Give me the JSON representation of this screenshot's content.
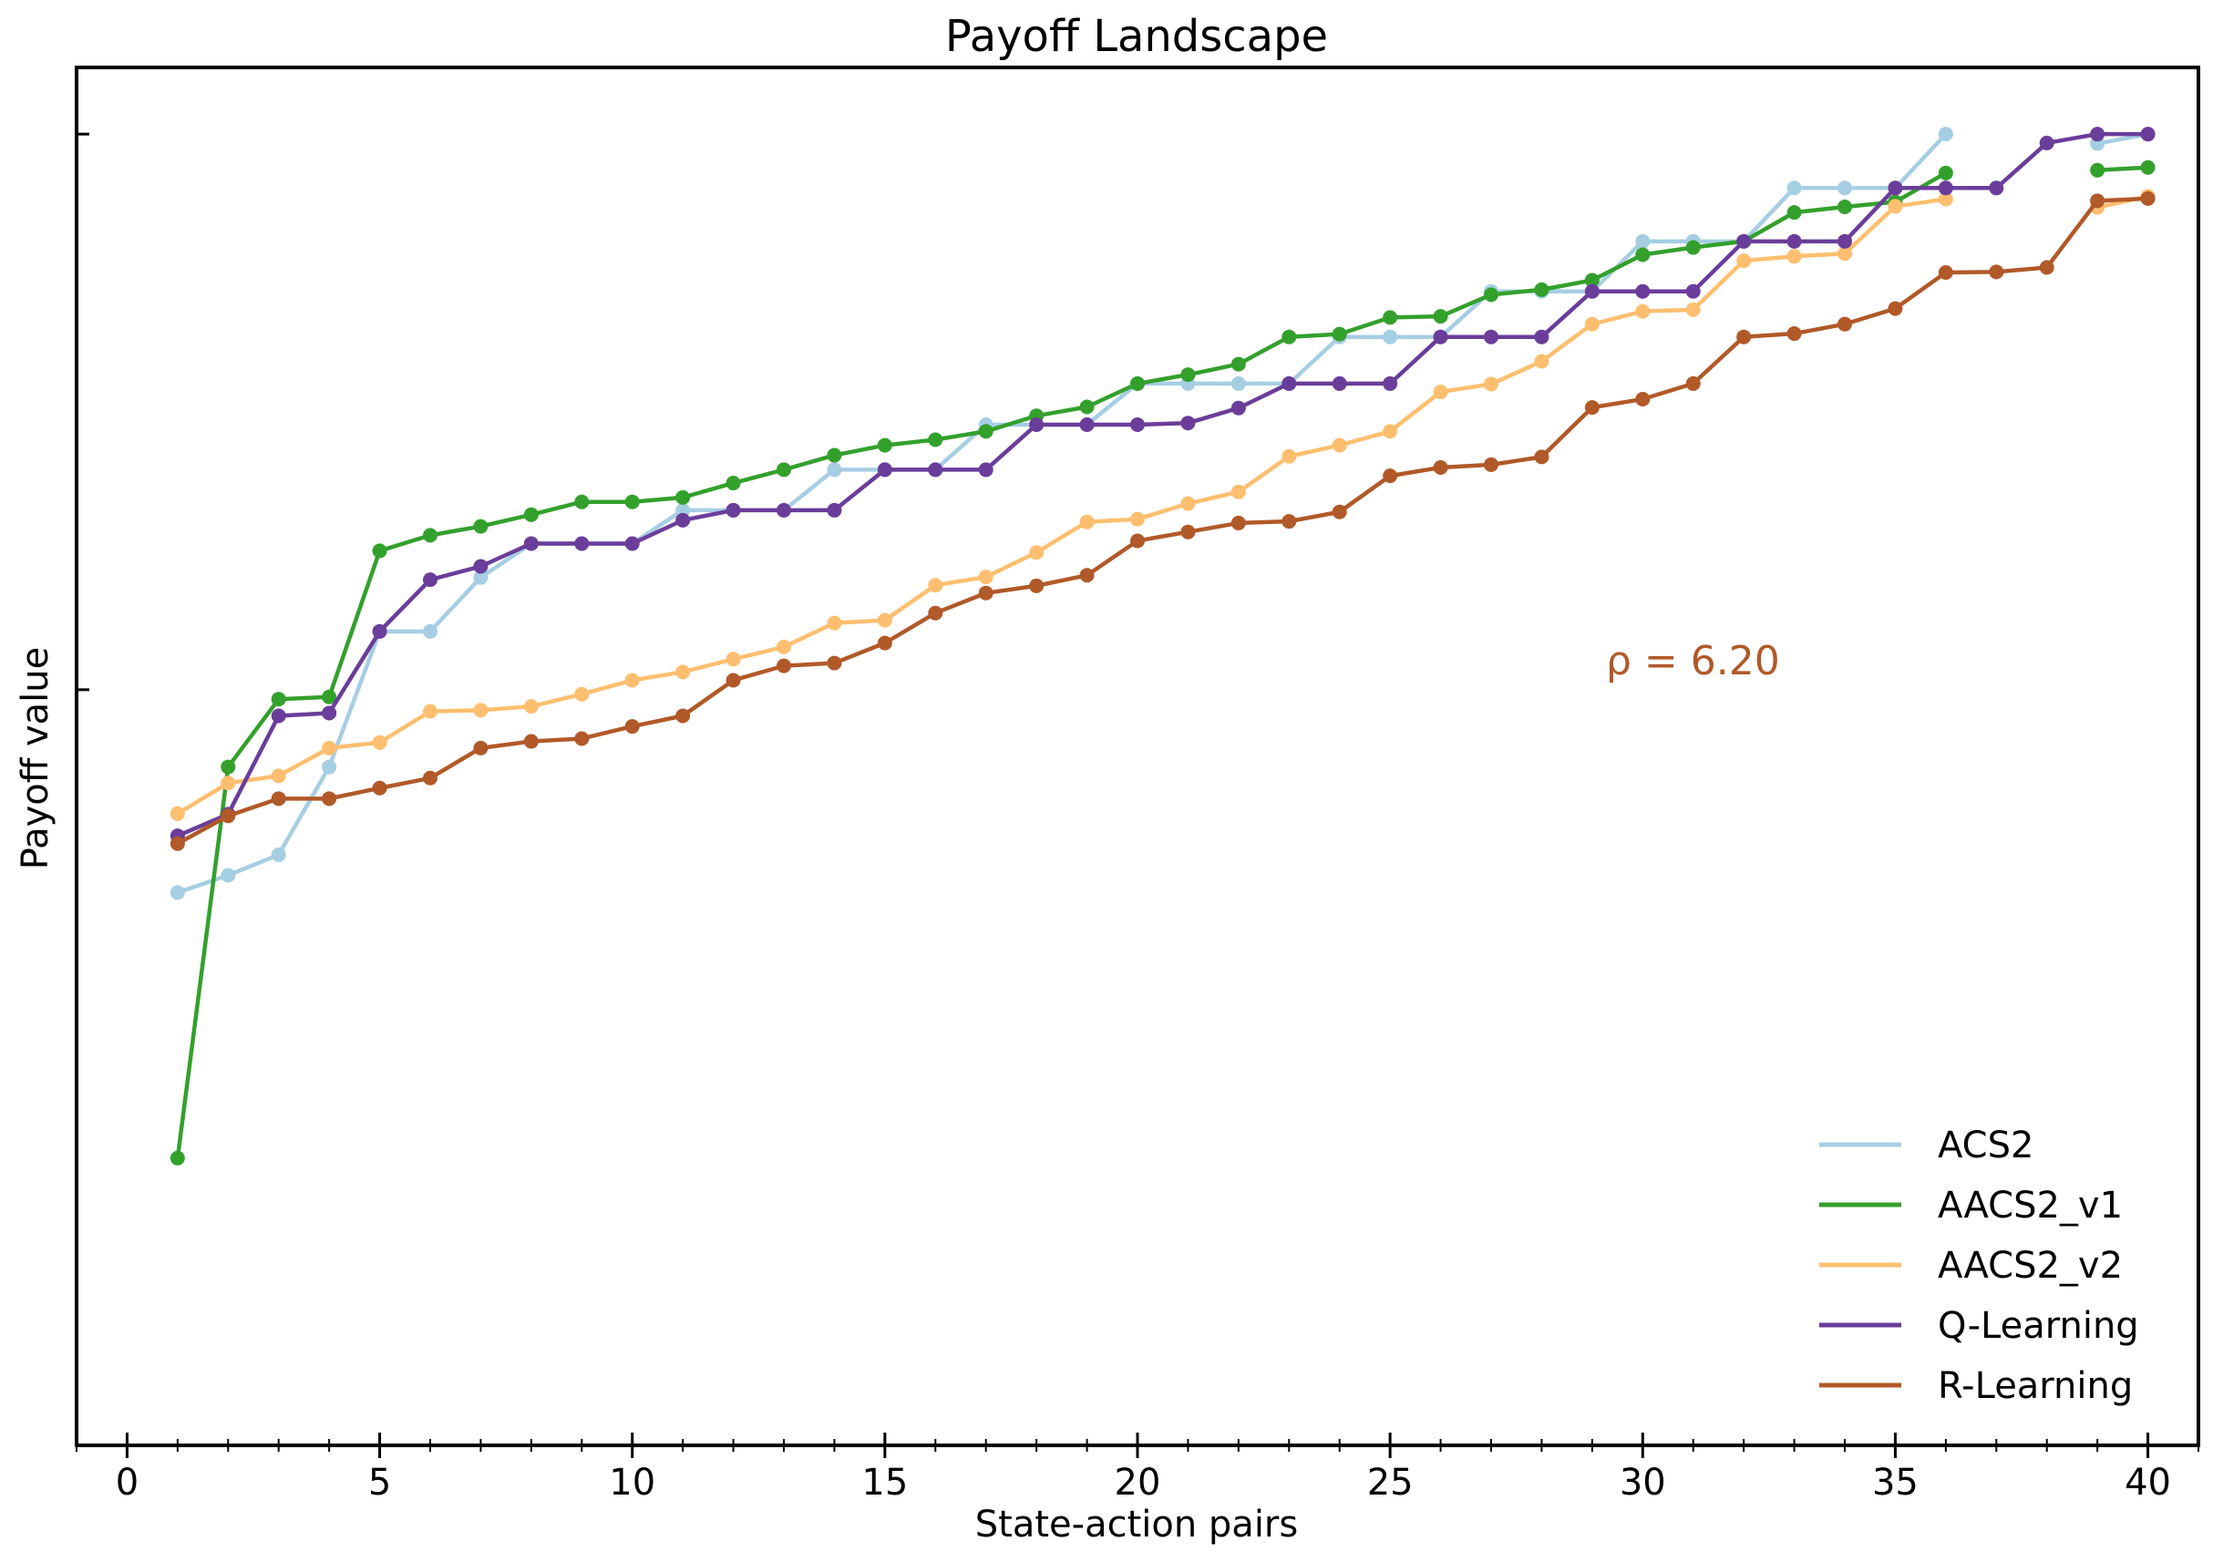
{
  "chart_data": {
    "type": "line",
    "title": "Payoff Landscape",
    "xlabel": "State-action pairs",
    "ylabel": "Payoff value",
    "xlim": [
      -1,
      41
    ],
    "ylim": [
      -1.36,
      1.12
    ],
    "xticks": [
      "0",
      "5",
      "10",
      "15",
      "20",
      "25",
      "30",
      "35",
      "40"
    ],
    "ytick_values": [
      0,
      1
    ],
    "grid": false,
    "legend_position": "lower right",
    "annotation": {
      "text": "ρ = 6.20",
      "x": 31.6,
      "y": 0.22,
      "color": "#b15928"
    },
    "series": [
      {
        "name": "ACS2",
        "color": "#a6cee3",
        "x": [
          1,
          2,
          3,
          4,
          5,
          6,
          7,
          8,
          9,
          10,
          11,
          12,
          13,
          14,
          15,
          16,
          17,
          18,
          19,
          20,
          21,
          22,
          23,
          24,
          25,
          26,
          27,
          28,
          29,
          30,
          31,
          32,
          33,
          34,
          35,
          36,
          null,
          null,
          39,
          40
        ],
        "y": [
          -0.365,
          -0.334,
          -0.297,
          -0.139,
          0.105,
          0.105,
          0.202,
          0.263,
          0.263,
          0.263,
          0.323,
          0.323,
          0.323,
          0.396,
          0.396,
          0.396,
          0.477,
          0.477,
          0.477,
          0.551,
          0.551,
          0.551,
          0.551,
          0.635,
          0.635,
          0.635,
          0.717,
          0.717,
          0.717,
          0.807,
          0.807,
          0.807,
          0.903,
          0.903,
          0.903,
          1.0,
          null,
          null,
          0.983,
          1.0
        ]
      },
      {
        "name": "AACS2_v1",
        "color": "#33a02c",
        "x": [
          1,
          2,
          3,
          4,
          5,
          6,
          7,
          8,
          9,
          10,
          11,
          12,
          13,
          14,
          15,
          16,
          17,
          18,
          19,
          20,
          21,
          22,
          23,
          24,
          25,
          26,
          27,
          28,
          29,
          30,
          31,
          32,
          33,
          34,
          35,
          36,
          null,
          null,
          39,
          40
        ],
        "y": [
          -0.843,
          -0.139,
          -0.017,
          -0.013,
          0.25,
          0.278,
          0.294,
          0.315,
          0.338,
          0.338,
          0.346,
          0.372,
          0.396,
          0.422,
          0.44,
          0.45,
          0.465,
          0.493,
          0.509,
          0.551,
          0.567,
          0.586,
          0.635,
          0.64,
          0.67,
          0.672,
          0.711,
          0.72,
          0.737,
          0.783,
          0.796,
          0.807,
          0.859,
          0.869,
          0.878,
          0.93,
          null,
          null,
          0.935,
          0.94
        ]
      },
      {
        "name": "AACS2_v2",
        "color": "#fdbf6f",
        "x": [
          1,
          2,
          3,
          4,
          5,
          6,
          7,
          8,
          9,
          10,
          11,
          12,
          13,
          14,
          15,
          16,
          17,
          18,
          19,
          20,
          21,
          22,
          23,
          24,
          25,
          26,
          27,
          28,
          29,
          30,
          31,
          32,
          33,
          34,
          35,
          36,
          null,
          null,
          39,
          40
        ],
        "y": [
          -0.223,
          -0.168,
          -0.155,
          -0.105,
          -0.095,
          -0.039,
          -0.037,
          -0.03,
          -0.008,
          0.017,
          0.032,
          0.055,
          0.077,
          0.12,
          0.125,
          0.188,
          0.203,
          0.247,
          0.302,
          0.307,
          0.335,
          0.356,
          0.42,
          0.44,
          0.465,
          0.536,
          0.55,
          0.591,
          0.658,
          0.681,
          0.684,
          0.772,
          0.78,
          0.785,
          0.87,
          0.883,
          null,
          null,
          0.868,
          0.888
        ]
      },
      {
        "name": "Q-Learning",
        "color": "#6a3d9a",
        "x": [
          1,
          2,
          3,
          4,
          5,
          6,
          7,
          8,
          9,
          10,
          11,
          12,
          13,
          14,
          15,
          16,
          17,
          18,
          19,
          20,
          21,
          22,
          23,
          24,
          25,
          26,
          27,
          28,
          29,
          30,
          31,
          32,
          33,
          34,
          35,
          36,
          37,
          38,
          39,
          40
        ],
        "y": [
          -0.263,
          -0.224,
          -0.047,
          -0.042,
          0.105,
          0.198,
          0.222,
          0.263,
          0.263,
          0.263,
          0.305,
          0.323,
          0.323,
          0.323,
          0.396,
          0.396,
          0.396,
          0.477,
          0.477,
          0.477,
          0.48,
          0.507,
          0.551,
          0.551,
          0.551,
          0.635,
          0.635,
          0.635,
          0.717,
          0.717,
          0.717,
          0.807,
          0.807,
          0.807,
          0.903,
          0.903,
          0.903,
          0.984,
          1.0,
          1.0
        ]
      },
      {
        "name": "R-Learning",
        "color": "#b15928",
        "x": [
          1,
          2,
          3,
          4,
          5,
          6,
          7,
          8,
          9,
          10,
          11,
          12,
          13,
          14,
          15,
          16,
          17,
          18,
          19,
          20,
          21,
          22,
          23,
          24,
          25,
          26,
          27,
          28,
          29,
          30,
          31,
          32,
          33,
          34,
          35,
          36,
          37,
          38,
          39,
          40
        ],
        "y": [
          -0.277,
          -0.227,
          -0.196,
          -0.196,
          -0.177,
          -0.159,
          -0.105,
          -0.093,
          -0.088,
          -0.066,
          -0.047,
          0.017,
          0.043,
          0.048,
          0.084,
          0.138,
          0.174,
          0.187,
          0.206,
          0.268,
          0.284,
          0.3,
          0.303,
          0.32,
          0.385,
          0.4,
          0.405,
          0.419,
          0.508,
          0.523,
          0.551,
          0.635,
          0.641,
          0.658,
          0.686,
          0.751,
          0.752,
          0.76,
          0.88,
          0.884
        ]
      }
    ]
  }
}
